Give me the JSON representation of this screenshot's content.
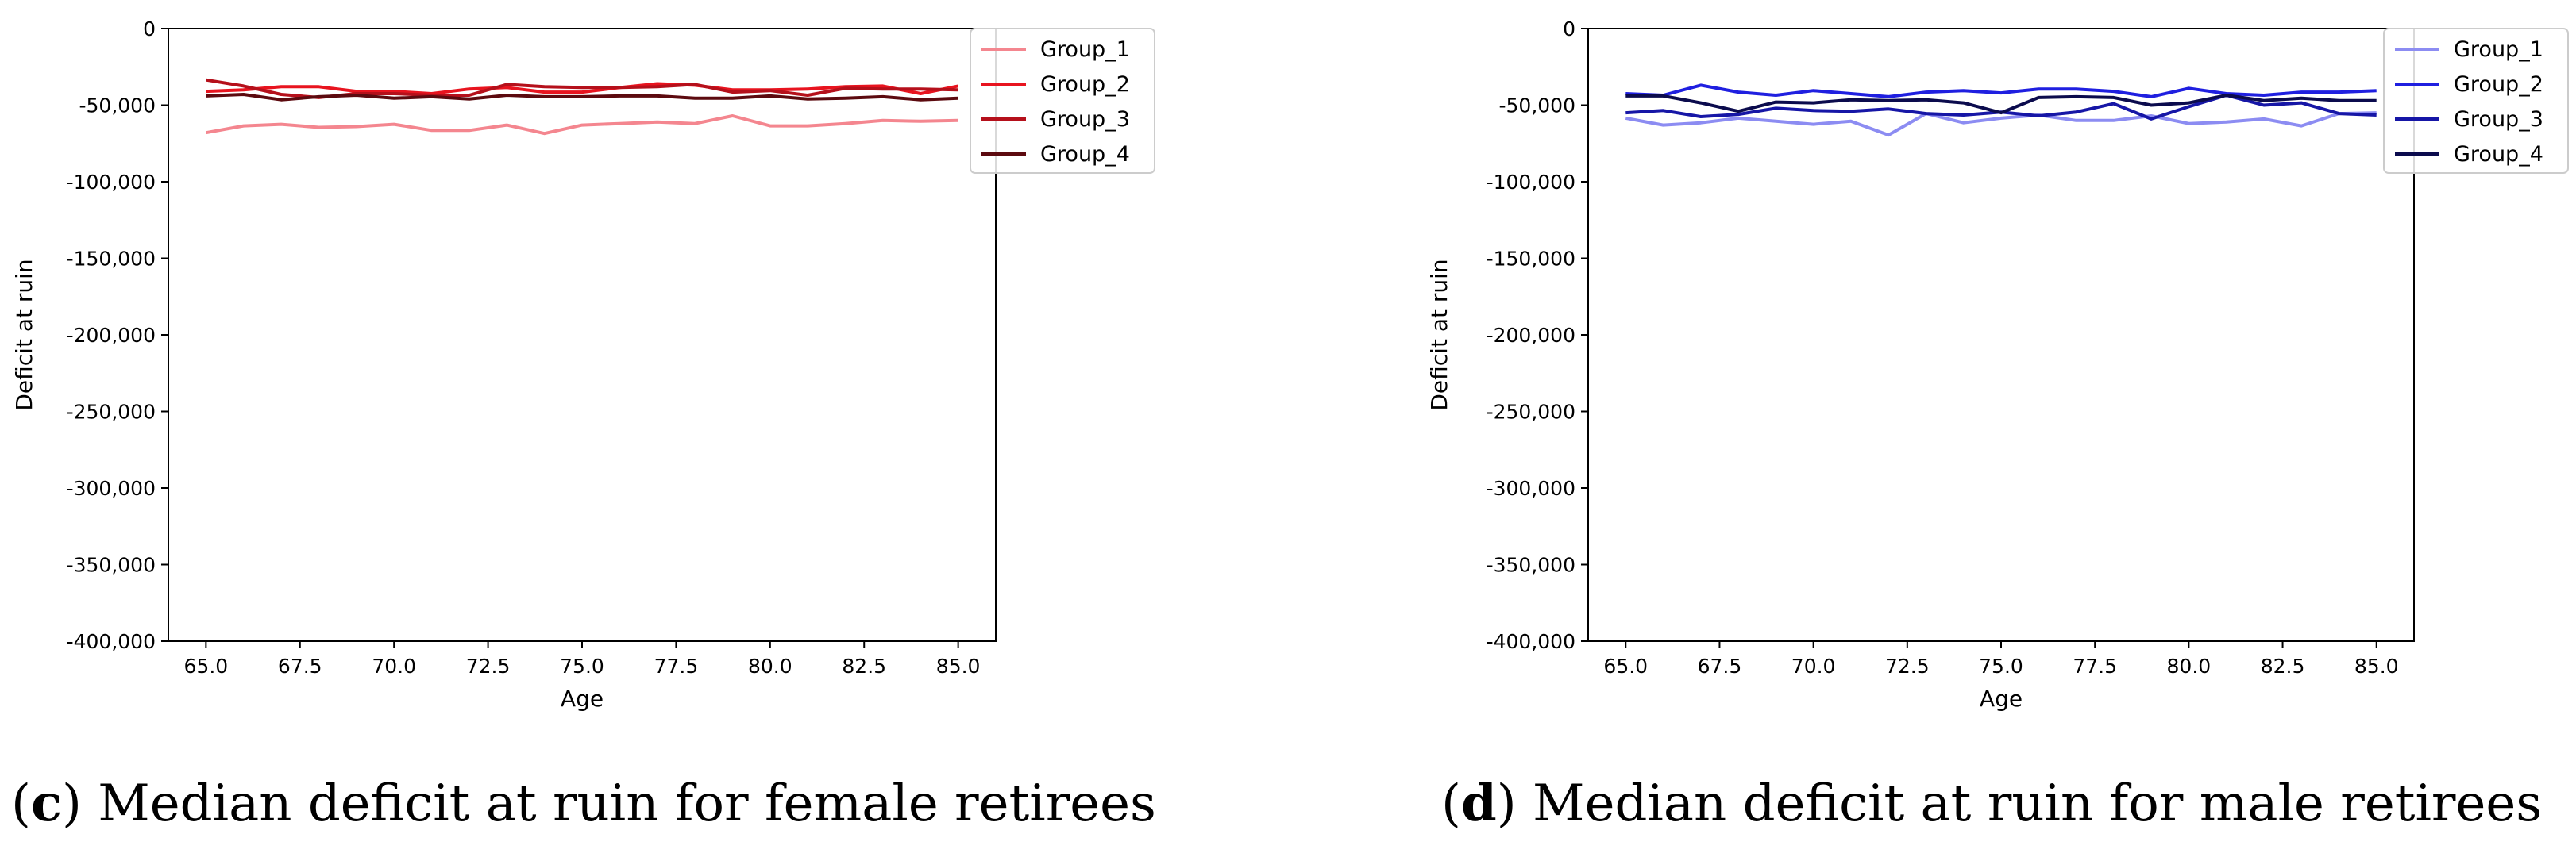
{
  "figure": {
    "captions": [
      {
        "paren_open": "(",
        "letter": "c",
        "paren_close": ")",
        "text": " Median deficit at ruin for female retirees"
      },
      {
        "paren_open": "(",
        "letter": "d",
        "paren_close": ")",
        "text": " Median deficit at ruin for male retirees"
      }
    ]
  },
  "chart_data": [
    {
      "type": "line",
      "title": "Median deficit at ruin for female retirees",
      "xlabel": "Age",
      "ylabel": "Deficit at ruin",
      "xlim": [
        64,
        86
      ],
      "ylim": [
        -400000,
        0
      ],
      "x_ticks": [
        65,
        67.5,
        70,
        72.5,
        75,
        77.5,
        80,
        82.5,
        85
      ],
      "x_tick_labels": [
        "65.0",
        "67.5",
        "70.0",
        "72.5",
        "75.0",
        "77.5",
        "80.0",
        "82.5",
        "85.0"
      ],
      "y_ticks": [
        0,
        -50000,
        -100000,
        -150000,
        -200000,
        -250000,
        -300000,
        -350000,
        -400000
      ],
      "y_tick_labels": [
        "0",
        "-50,000",
        "-100,000",
        "-150,000",
        "-200,000",
        "-250,000",
        "-300,000",
        "-350,000",
        "-400,000"
      ],
      "legend_position": "top-right",
      "x": [
        65,
        66,
        67,
        68,
        69,
        70,
        71,
        72,
        73,
        74,
        75,
        76,
        77,
        78,
        79,
        80,
        81,
        82,
        83,
        84,
        85
      ],
      "series": [
        {
          "name": "Group_1",
          "color": "#f4868f",
          "values": [
            -68000,
            -63500,
            -62500,
            -64500,
            -64000,
            -62500,
            -66500,
            -66500,
            -63000,
            -68500,
            -63000,
            -62000,
            -61000,
            -62000,
            -57000,
            -63500,
            -63500,
            -62000,
            -60000,
            -60500,
            -60000
          ]
        },
        {
          "name": "Group_2",
          "color": "#e8141f",
          "values": [
            -41000,
            -40000,
            -38000,
            -38000,
            -41000,
            -41000,
            -42500,
            -39500,
            -38500,
            -41500,
            -41500,
            -38500,
            -36000,
            -37000,
            -40000,
            -40000,
            -39500,
            -38000,
            -37500,
            -42500,
            -37500
          ]
        },
        {
          "name": "Group_3",
          "color": "#b5101b",
          "values": [
            -33500,
            -37500,
            -43000,
            -45000,
            -42500,
            -42500,
            -43500,
            -43500,
            -36500,
            -38000,
            -38500,
            -38500,
            -38000,
            -36500,
            -41500,
            -40500,
            -43500,
            -39000,
            -39500,
            -39500,
            -40000
          ]
        },
        {
          "name": "Group_4",
          "color": "#5c0a0f",
          "values": [
            -44000,
            -43000,
            -46500,
            -44500,
            -43500,
            -45500,
            -44500,
            -46000,
            -43500,
            -44500,
            -44500,
            -44000,
            -44000,
            -45500,
            -45500,
            -44000,
            -46000,
            -45500,
            -44500,
            -46500,
            -45500
          ]
        }
      ]
    },
    {
      "type": "line",
      "title": "Median deficit at ruin for male retirees",
      "xlabel": "Age",
      "ylabel": "Deficit at ruin",
      "xlim": [
        64,
        86
      ],
      "ylim": [
        -400000,
        0
      ],
      "x_ticks": [
        65,
        67.5,
        70,
        72.5,
        75,
        77.5,
        80,
        82.5,
        85
      ],
      "x_tick_labels": [
        "65.0",
        "67.5",
        "70.0",
        "72.5",
        "75.0",
        "77.5",
        "80.0",
        "82.5",
        "85.0"
      ],
      "y_ticks": [
        0,
        -50000,
        -100000,
        -150000,
        -200000,
        -250000,
        -300000,
        -350000,
        -400000
      ],
      "y_tick_labels": [
        "0",
        "-50,000",
        "-100,000",
        "-150,000",
        "-200,000",
        "-250,000",
        "-300,000",
        "-350,000",
        "-400,000"
      ],
      "legend_position": "top-right",
      "x": [
        65,
        66,
        67,
        68,
        69,
        70,
        71,
        72,
        73,
        74,
        75,
        76,
        77,
        78,
        79,
        80,
        81,
        82,
        83,
        84,
        85
      ],
      "series": [
        {
          "name": "Group_1",
          "color": "#8c8cf2",
          "values": [
            -58500,
            -63000,
            -61500,
            -58500,
            -60500,
            -62500,
            -60500,
            -69500,
            -55500,
            -61500,
            -58500,
            -56500,
            -60000,
            -60000,
            -57000,
            -62000,
            -61000,
            -59000,
            -63500,
            -55500,
            -55000
          ]
        },
        {
          "name": "Group_2",
          "color": "#1f1fe0",
          "values": [
            -42500,
            -43500,
            -37000,
            -41500,
            -43500,
            -40500,
            -42500,
            -44500,
            -41500,
            -40500,
            -42000,
            -39500,
            -39500,
            -41000,
            -44500,
            -39000,
            -42500,
            -43500,
            -41500,
            -41500,
            -40500
          ]
        },
        {
          "name": "Group_3",
          "color": "#1616a6",
          "values": [
            -55000,
            -53500,
            -57500,
            -56000,
            -52000,
            -53500,
            -54000,
            -52500,
            -55500,
            -56500,
            -54500,
            -57000,
            -54500,
            -49000,
            -59000,
            -51000,
            -43500,
            -50000,
            -48500,
            -55500,
            -56500
          ]
        },
        {
          "name": "Group_4",
          "color": "#0b0b4d",
          "values": [
            -44000,
            -44000,
            -48500,
            -54000,
            -48000,
            -48500,
            -46500,
            -47000,
            -46500,
            -48500,
            -55000,
            -45000,
            -44500,
            -45000,
            -50000,
            -48500,
            -43500,
            -47000,
            -45500,
            -47000,
            -47000
          ]
        }
      ]
    }
  ]
}
